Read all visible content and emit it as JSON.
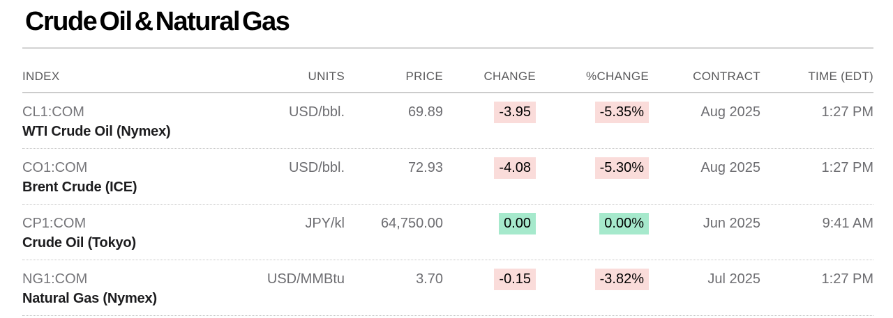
{
  "page": {
    "title": "Crude Oil & Natural Gas"
  },
  "colors": {
    "negative_badge_bg": "#fadcda",
    "flat_badge_bg": "#a6e9cc",
    "header_text": "#59595b",
    "secondary_text": "#6d6d71",
    "name_text": "#1c1c1e"
  },
  "table": {
    "headers": [
      "INDEX",
      "UNITS",
      "PRICE",
      "CHANGE",
      "%CHANGE",
      "CONTRACT",
      "TIME (EDT)"
    ],
    "rows": [
      {
        "ticker": "CL1:COM",
        "name": "WTI Crude Oil (Nymex)",
        "units": "USD/bbl.",
        "price": "69.89",
        "change": "-3.95",
        "pct_change": "-5.35%",
        "direction": "down",
        "contract": "Aug 2025",
        "time": "1:27 PM"
      },
      {
        "ticker": "CO1:COM",
        "name": "Brent Crude (ICE)",
        "units": "USD/bbl.",
        "price": "72.93",
        "change": "-4.08",
        "pct_change": "-5.30%",
        "direction": "down",
        "contract": "Aug 2025",
        "time": "1:27 PM"
      },
      {
        "ticker": "CP1:COM",
        "name": "Crude Oil (Tokyo)",
        "units": "JPY/kl",
        "price": "64,750.00",
        "change": "0.00",
        "pct_change": "0.00%",
        "direction": "flat",
        "contract": "Jun 2025",
        "time": "9:41 AM"
      },
      {
        "ticker": "NG1:COM",
        "name": "Natural Gas (Nymex)",
        "units": "USD/MMBtu",
        "price": "3.70",
        "change": "-0.15",
        "pct_change": "-3.82%",
        "direction": "down",
        "contract": "Jul 2025",
        "time": "1:27 PM"
      }
    ]
  }
}
